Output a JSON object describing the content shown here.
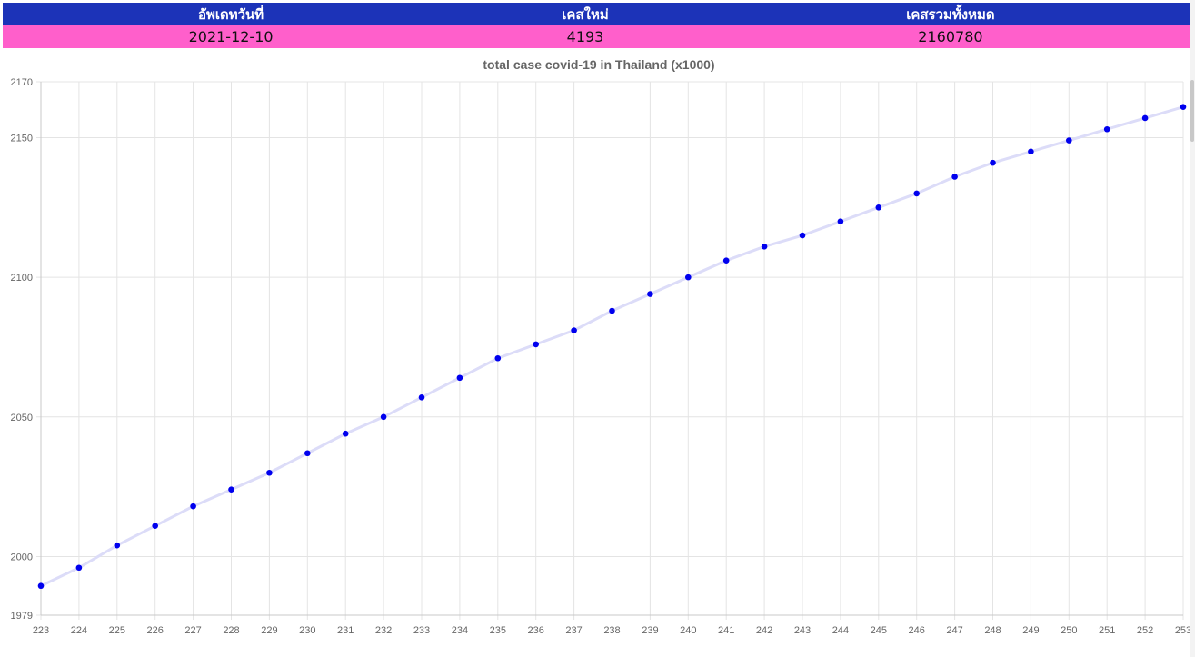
{
  "summary": {
    "headers": [
      "อัพเดทวันที่",
      "เคสใหม่",
      "เคสรวมทั้งหมด"
    ],
    "values": [
      "2021-12-10",
      "4193",
      "2160780"
    ]
  },
  "colors": {
    "header_bg": "#1c33b8",
    "row_bg": "#ff5fcb",
    "point": "#0000ee",
    "line": "#dcdcf8",
    "grid": "#e4e4e4"
  },
  "chart_data": {
    "type": "line",
    "title": "total case covid-19 in Thailand (x1000)",
    "xlabel": "",
    "ylabel": "",
    "x": [
      223,
      224,
      225,
      226,
      227,
      228,
      229,
      230,
      231,
      232,
      233,
      234,
      235,
      236,
      237,
      238,
      239,
      240,
      241,
      242,
      243,
      244,
      245,
      246,
      247,
      248,
      249,
      250,
      251,
      252,
      253
    ],
    "series": [
      {
        "values": [
          1989.5,
          1996,
          2004,
          2011,
          2018,
          2024,
          2030,
          2037,
          2044,
          2050,
          2057,
          2064,
          2071,
          2076,
          2081,
          2088,
          2094,
          2100,
          2106,
          2111,
          2115,
          2120,
          2125,
          2130,
          2136,
          2141,
          2145,
          2149,
          2153,
          2157,
          2161
        ]
      }
    ],
    "xlim": [
      223,
      253
    ],
    "ylim": [
      1979,
      2170
    ],
    "y_ticks": [
      1979,
      2000,
      2050,
      2100,
      2150,
      2170
    ],
    "grid": true,
    "legend": "none"
  }
}
